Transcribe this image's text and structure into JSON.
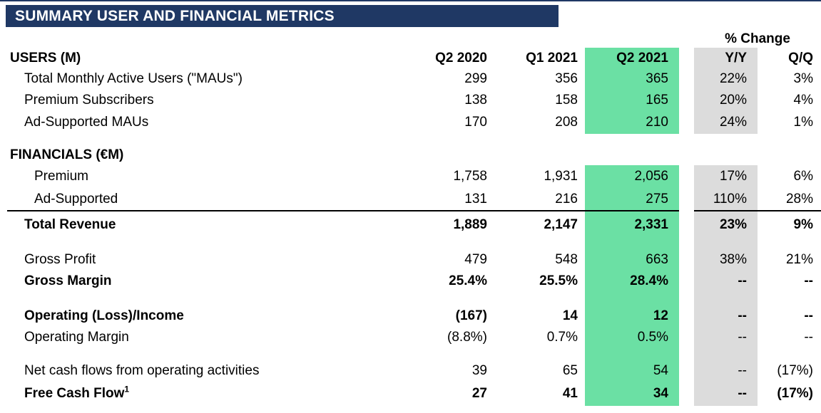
{
  "header": {
    "title": "SUMMARY USER AND FINANCIAL METRICS"
  },
  "table": {
    "pct_change_label": "% Change",
    "col_headers": {
      "period1": "Q2 2020",
      "period2": "Q1 2021",
      "period3": "Q2 2021",
      "yy": "Y/Y",
      "qq": "Q/Q"
    },
    "sections": {
      "users": {
        "label": "USERS (M)"
      },
      "financials": {
        "label": "FINANCIALS (€M)"
      }
    },
    "rows": {
      "maus": {
        "label": "Total Monthly Active Users (\"MAUs\")",
        "c1": "299",
        "c2": "356",
        "c3": "365",
        "yy": "22%",
        "qq": "3%"
      },
      "premium_subs": {
        "label": "Premium Subscribers",
        "c1": "138",
        "c2": "158",
        "c3": "165",
        "yy": "20%",
        "qq": "4%"
      },
      "ad_maus": {
        "label": "Ad-Supported MAUs",
        "c1": "170",
        "c2": "208",
        "c3": "210",
        "yy": "24%",
        "qq": "1%"
      },
      "premium_rev": {
        "label": "Premium",
        "c1": "1,758",
        "c2": "1,931",
        "c3": "2,056",
        "yy": "17%",
        "qq": "6%"
      },
      "ad_rev": {
        "label": "Ad-Supported",
        "c1": "131",
        "c2": "216",
        "c3": "275",
        "yy": "110%",
        "qq": "28%"
      },
      "total_revenue": {
        "label": "Total Revenue",
        "c1": "1,889",
        "c2": "2,147",
        "c3": "2,331",
        "yy": "23%",
        "qq": "9%"
      },
      "gross_profit": {
        "label": "Gross Profit",
        "c1": "479",
        "c2": "548",
        "c3": "663",
        "yy": "38%",
        "qq": "21%"
      },
      "gross_margin": {
        "label": "Gross Margin",
        "c1": "25.4%",
        "c2": "25.5%",
        "c3": "28.4%",
        "yy": "--",
        "qq": "--"
      },
      "operating_income": {
        "label": "Operating (Loss)/Income",
        "c1": "(167)",
        "c2": "14",
        "c3": "12",
        "yy": "--",
        "qq": "--"
      },
      "operating_margin": {
        "label": "Operating Margin",
        "c1": "(8.8%)",
        "c2": "0.7%",
        "c3": "0.5%",
        "yy": "--",
        "qq": "--"
      },
      "net_cash": {
        "label": "Net cash flows from operating activities",
        "c1": "39",
        "c2": "65",
        "c3": "54",
        "yy": "--",
        "qq": "(17%)"
      },
      "free_cash_flow": {
        "label": "Free Cash Flow",
        "footnote": "1",
        "c1": "27",
        "c2": "41",
        "c3": "34",
        "yy": "--",
        "qq": "(17%)"
      }
    }
  },
  "colors": {
    "header_bg": "#1f3864",
    "highlight_current_quarter": "#6be0a4",
    "highlight_yy_column": "#dcdcdc"
  }
}
